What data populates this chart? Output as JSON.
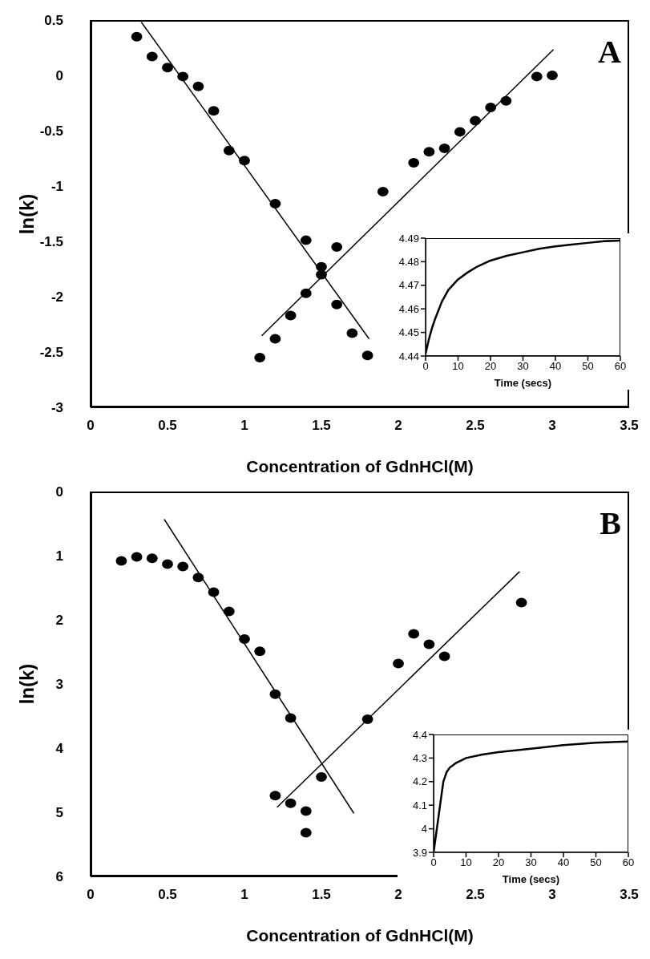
{
  "chart_data": [
    {
      "type": "scatter",
      "xlabel": "Concentration of GdnHCl(M)",
      "ylabel": "ln(k)",
      "annotations": [
        "A"
      ],
      "xlim": [
        0,
        3.5
      ],
      "xticks": [
        0,
        0.5,
        1,
        1.5,
        2,
        2.5,
        3,
        3.5
      ],
      "ylim": [
        -3,
        0.5
      ],
      "yticks": [
        -3,
        -2.5,
        -2,
        -1.5,
        -1,
        -0.5,
        0,
        0.5
      ],
      "grid": false,
      "legend": false,
      "marker": "circle",
      "series": [
        {
          "color": "#000000",
          "x": [
            0.3,
            0.4,
            0.5,
            0.6,
            0.7,
            0.8,
            0.9,
            1.0,
            1.1,
            1.2,
            1.2,
            1.3,
            1.4,
            1.4,
            1.5,
            1.5,
            1.6,
            1.6,
            1.7,
            1.8,
            1.9,
            2.1,
            2.2,
            2.3,
            2.4,
            2.5,
            2.6,
            2.7,
            2.9,
            3.0
          ],
          "values": [
            0.35,
            0.17,
            0.07,
            -0.01,
            -0.1,
            -0.32,
            -0.68,
            -0.77,
            -2.55,
            -1.16,
            -2.38,
            -2.17,
            -1.49,
            -1.97,
            -1.73,
            -1.8,
            -1.55,
            -2.07,
            -2.33,
            -2.53,
            -1.05,
            -0.79,
            -0.69,
            -0.66,
            -0.51,
            -0.41,
            -0.29,
            -0.23,
            -0.01,
            0.0
          ]
        },
        {
          "type": "line",
          "color": "#000000",
          "x": [
            0.32,
            1.82
          ],
          "values": [
            0.5,
            -2.4
          ]
        },
        {
          "type": "line",
          "color": "#000000",
          "x": [
            1.1,
            3.02
          ],
          "values": [
            -2.37,
            0.25
          ]
        }
      ]
    },
    {
      "type": "line",
      "xlabel": "Time (secs)",
      "xlim": [
        0,
        60
      ],
      "xticks": [
        0,
        10,
        20,
        30,
        40,
        50,
        60
      ],
      "ylim": [
        4.44,
        4.49
      ],
      "yticks": [
        4.44,
        4.45,
        4.46,
        4.47,
        4.48,
        4.49
      ],
      "grid": false,
      "legend": false,
      "marker": "none",
      "series": [
        {
          "color": "#000000",
          "x": [
            0,
            1,
            2,
            3,
            5,
            7,
            10,
            13,
            16,
            20,
            25,
            30,
            35,
            40,
            45,
            50,
            55,
            60
          ],
          "values": [
            4.441,
            4.447,
            4.452,
            4.456,
            4.463,
            4.468,
            4.4725,
            4.4755,
            4.478,
            4.4805,
            4.4825,
            4.484,
            4.4855,
            4.4865,
            4.4873,
            4.488,
            4.4887,
            4.489
          ]
        }
      ]
    },
    {
      "type": "scatter",
      "xlabel": "Concentration of GdnHCl(M)",
      "ylabel": "ln(k)",
      "annotations": [
        "B"
      ],
      "xlim": [
        0,
        3.5
      ],
      "xticks": [
        0,
        0.5,
        1,
        1.5,
        2,
        2.5,
        3,
        3.5
      ],
      "ylim": [
        6,
        0
      ],
      "yticks": [
        0,
        1,
        2,
        3,
        4,
        5,
        6
      ],
      "grid": false,
      "legend": false,
      "marker": "circle",
      "series": [
        {
          "color": "#000000",
          "x": [
            0.2,
            0.3,
            0.4,
            0.5,
            0.6,
            0.7,
            0.8,
            0.9,
            1.0,
            1.1,
            1.2,
            1.2,
            1.3,
            1.3,
            1.4,
            1.4,
            1.5,
            1.8,
            2.0,
            2.1,
            2.2,
            2.3,
            2.8
          ],
          "values": [
            1.08,
            1.02,
            1.04,
            1.13,
            1.17,
            1.34,
            1.57,
            1.87,
            2.3,
            2.49,
            3.16,
            4.74,
            3.53,
            4.86,
            4.98,
            5.32,
            4.45,
            3.55,
            2.68,
            2.22,
            2.38,
            2.57,
            1.73
          ]
        },
        {
          "type": "line",
          "color": "#000000",
          "x": [
            0.47,
            1.72
          ],
          "values": [
            0.4,
            5.05
          ]
        },
        {
          "type": "line",
          "color": "#000000",
          "x": [
            1.2,
            2.8
          ],
          "values": [
            4.95,
            1.22
          ]
        }
      ]
    },
    {
      "type": "line",
      "xlabel": "Time (secs)",
      "xlim": [
        0,
        60
      ],
      "xticks": [
        0,
        10,
        20,
        30,
        40,
        50,
        60
      ],
      "ylim": [
        3.9,
        4.4
      ],
      "yticks": [
        3.9,
        4,
        4.1,
        4.2,
        4.3,
        4.4
      ],
      "grid": false,
      "legend": false,
      "marker": "none",
      "series": [
        {
          "color": "#000000",
          "x": [
            0,
            1,
            2,
            3,
            4,
            5,
            7,
            10,
            15,
            20,
            30,
            40,
            50,
            60
          ],
          "values": [
            3.9,
            4.0,
            4.1,
            4.2,
            4.24,
            4.26,
            4.28,
            4.3,
            4.315,
            4.325,
            4.34,
            4.355,
            4.365,
            4.37
          ]
        }
      ]
    }
  ]
}
